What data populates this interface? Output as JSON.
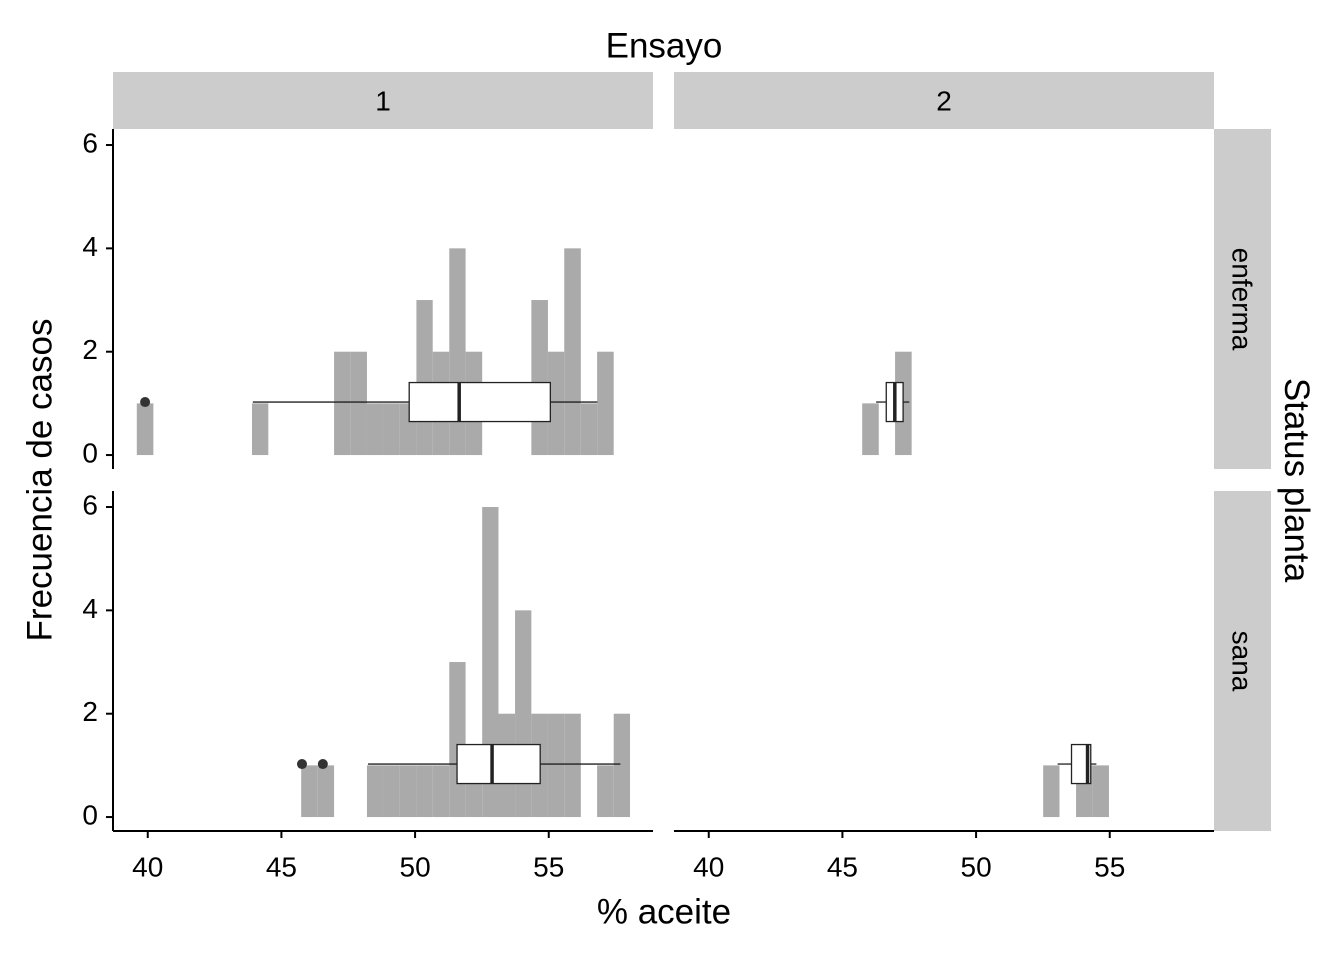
{
  "chart_data": {
    "type": "histogram",
    "title": "Ensayo",
    "row_title": "Status planta",
    "x_label": "% aceite",
    "y_label": "Frecuencia de casos",
    "color": "#aaaaaa",
    "xlim": [
      38.7,
      58.9
    ],
    "ylim": [
      -0.27,
      6.31
    ],
    "xticks": [
      40,
      45,
      50,
      55
    ],
    "yticks": [
      0,
      2,
      4,
      6
    ],
    "columns": [
      "1",
      "2"
    ],
    "bins": [
      39.59,
      40.21,
      40.82,
      41.44,
      42.05,
      42.67,
      43.28,
      43.9,
      44.51,
      45.13,
      45.74,
      46.36,
      46.97,
      47.59,
      48.2,
      48.82,
      49.43,
      50.05,
      50.66,
      51.28,
      51.89,
      52.51,
      53.12,
      53.74,
      54.35,
      54.97,
      55.58,
      56.2,
      56.81,
      57.43,
      58.04
    ],
    "rows": [
      {
        "label": "enferma",
        "panels": [
          {
            "counts": [
              1,
              0,
              0,
              0,
              0,
              0,
              0,
              1,
              0,
              0,
              0,
              0,
              2,
              2,
              1,
              1,
              1,
              3,
              2,
              4,
              2,
              0,
              0,
              0,
              3,
              2,
              4,
              1,
              2,
              0
            ],
            "box": {
              "min": 43.93,
              "q1": 49.78,
              "median": 51.65,
              "q3": 55.06,
              "max": 56.82,
              "outliers": [
                39.9
              ]
            }
          },
          {
            "counts": [
              0,
              0,
              0,
              0,
              0,
              0,
              0,
              0,
              0,
              0,
              1,
              0,
              2,
              0,
              0,
              0,
              0,
              0,
              0,
              0,
              0,
              0,
              0,
              0,
              0,
              0,
              0,
              0,
              0,
              0
            ],
            "box": {
              "min": 46.26,
              "q1": 46.64,
              "median": 46.96,
              "q3": 47.27,
              "max": 47.5,
              "outliers": []
            }
          }
        ]
      },
      {
        "label": "sana",
        "panels": [
          {
            "counts": [
              0,
              0,
              0,
              0,
              0,
              0,
              0,
              0,
              0,
              0,
              1,
              1,
              0,
              0,
              1,
              1,
              1,
              1,
              1,
              3,
              1,
              6,
              2,
              4,
              2,
              2,
              2,
              0,
              1,
              2
            ],
            "box": {
              "min": 48.24,
              "q1": 51.57,
              "median": 52.88,
              "q3": 54.68,
              "max": 57.68,
              "outliers": [
                45.77,
                46.55
              ]
            }
          },
          {
            "counts": [
              0,
              0,
              0,
              0,
              0,
              0,
              0,
              0,
              0,
              0,
              0,
              0,
              0,
              0,
              0,
              0,
              0,
              0,
              0,
              0,
              0,
              1,
              0,
              1,
              1,
              0,
              0,
              0,
              0,
              0
            ],
            "box": {
              "min": 53.05,
              "q1": 53.57,
              "median": 54.17,
              "q3": 54.29,
              "max": 54.5,
              "outliers": []
            }
          }
        ]
      }
    ]
  }
}
